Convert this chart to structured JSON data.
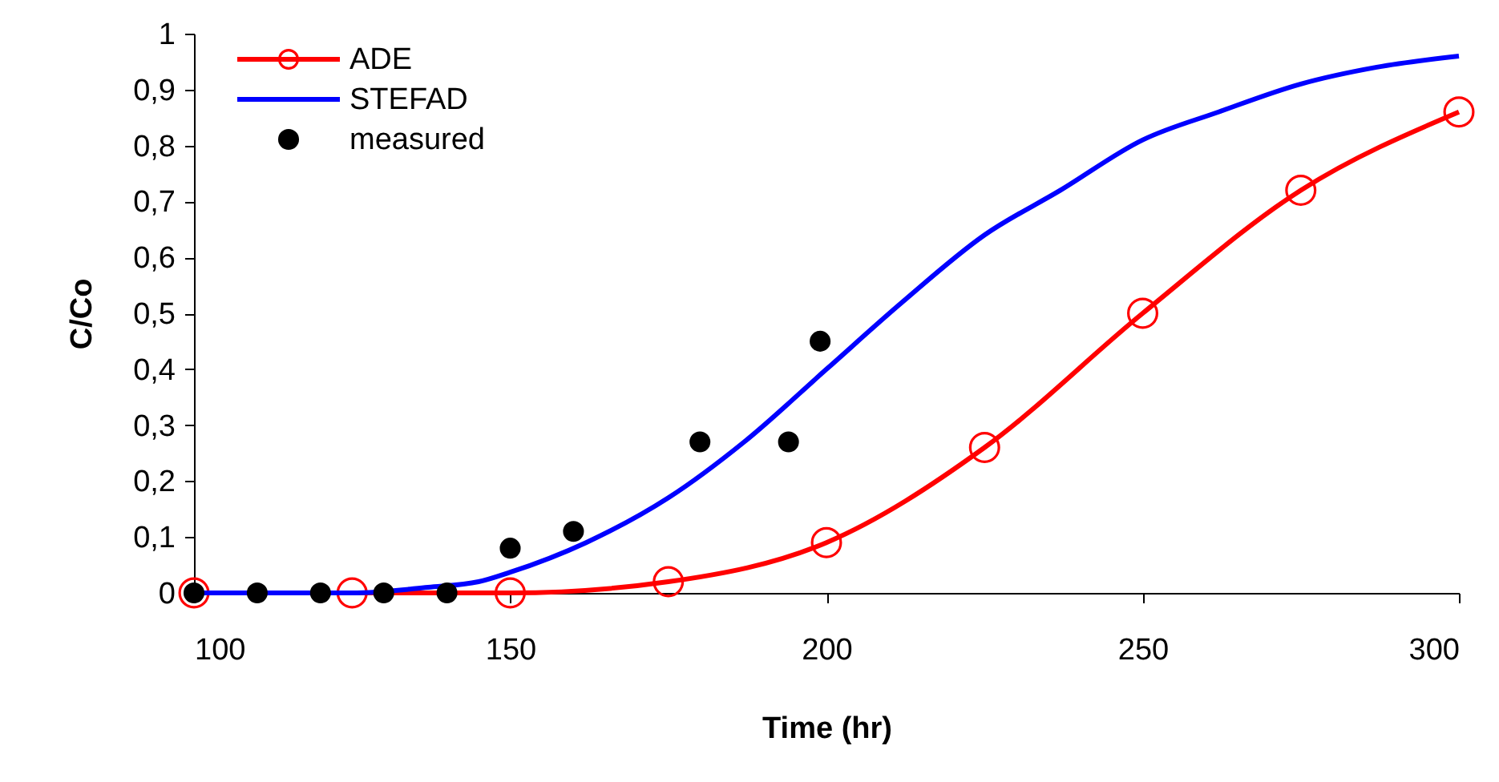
{
  "chart_data": {
    "type": "line",
    "xlabel": "Time (hr)",
    "ylabel": "C/Co",
    "xlim": [
      100,
      300
    ],
    "xticks": [
      100,
      150,
      200,
      250,
      300
    ],
    "ylim": [
      0,
      1
    ],
    "yticks": [
      0,
      {
        "value": 0.1,
        "label": "0,1"
      },
      {
        "value": 0.2,
        "label": "0,2"
      },
      {
        "value": 0.3,
        "label": "0,3"
      },
      {
        "value": 0.4,
        "label": "0,4"
      },
      {
        "value": 0.5,
        "label": "0,5"
      },
      {
        "value": 0.6,
        "label": "0,6"
      },
      {
        "value": 0.7,
        "label": "0,7"
      },
      {
        "value": 0.8,
        "label": "0,8"
      },
      {
        "value": 0.9,
        "label": "0,9"
      },
      1
    ],
    "grid": false,
    "legend": "top left",
    "series": [
      {
        "name": "ADE",
        "type": "line",
        "marker": "circle",
        "color": "#ff0000",
        "x": [
          100,
          125,
          150,
          175,
          200,
          225,
          250,
          275,
          300
        ],
        "values": [
          0,
          0,
          0,
          0.02,
          0.09,
          0.26,
          0.5,
          0.72,
          0.86
        ]
      },
      {
        "name": "STEFAD",
        "type": "line",
        "marker": "none",
        "color": "#0000ff",
        "x": [
          100,
          125,
          137,
          145,
          150,
          162,
          175,
          187,
          200,
          212,
          225,
          237,
          250,
          262,
          275,
          287,
          300
        ],
        "values": [
          0,
          0,
          0.01,
          0.02,
          0.037,
          0.09,
          0.17,
          0.27,
          0.4,
          0.52,
          0.64,
          0.72,
          0.81,
          0.86,
          0.91,
          0.94,
          0.96
        ]
      },
      {
        "name": "measured",
        "type": "scatter",
        "marker": "circle",
        "color": "#000000",
        "x": [
          100,
          110,
          120,
          130,
          140,
          150,
          160,
          180,
          194,
          199
        ],
        "values": [
          0,
          0,
          0,
          0,
          0,
          0.08,
          0.11,
          0.27,
          0.27,
          0.45
        ]
      }
    ]
  }
}
